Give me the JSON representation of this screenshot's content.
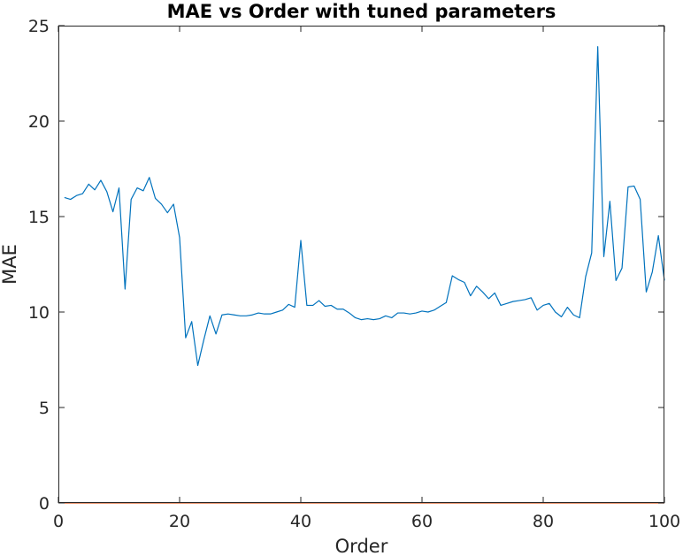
{
  "chart_data": {
    "type": "line",
    "title": "MAE vs Order with tuned parameters",
    "xlabel": "Order",
    "ylabel": "MAE",
    "xlim": [
      0,
      100
    ],
    "ylim": [
      0,
      25
    ],
    "xticks": [
      0,
      20,
      40,
      60,
      80,
      100
    ],
    "yticks": [
      0,
      5,
      10,
      15,
      20,
      25
    ],
    "grid": false,
    "box": true,
    "series": [
      {
        "color": "#0072BD",
        "x": [
          1,
          2,
          3,
          4,
          5,
          6,
          7,
          8,
          9,
          10,
          11,
          12,
          13,
          14,
          15,
          16,
          17,
          18,
          19,
          20,
          21,
          22,
          23,
          24,
          25,
          26,
          27,
          28,
          29,
          30,
          31,
          32,
          33,
          34,
          35,
          36,
          37,
          38,
          39,
          40,
          41,
          42,
          43,
          44,
          45,
          46,
          47,
          48,
          49,
          50,
          51,
          52,
          53,
          54,
          55,
          56,
          57,
          58,
          59,
          60,
          61,
          62,
          63,
          64,
          65,
          66,
          67,
          68,
          69,
          70,
          71,
          72,
          73,
          74,
          75,
          76,
          77,
          78,
          79,
          80,
          81,
          82,
          83,
          84,
          85,
          86,
          87,
          88,
          89,
          90,
          91,
          92,
          93,
          94,
          95,
          96,
          97,
          98,
          99,
          100
        ],
        "y": [
          16.0,
          15.9,
          16.1,
          16.2,
          16.7,
          16.4,
          16.9,
          16.3,
          15.25,
          16.5,
          11.2,
          15.9,
          16.5,
          16.35,
          17.05,
          15.95,
          15.65,
          15.2,
          15.65,
          13.9,
          8.65,
          9.5,
          7.2,
          8.55,
          9.8,
          8.85,
          9.85,
          9.9,
          9.85,
          9.8,
          9.8,
          9.85,
          9.95,
          9.9,
          9.9,
          10.0,
          10.1,
          10.4,
          10.25,
          13.75,
          10.35,
          10.35,
          10.6,
          10.3,
          10.35,
          10.15,
          10.15,
          9.95,
          9.7,
          9.6,
          9.65,
          9.6,
          9.65,
          9.8,
          9.7,
          9.95,
          9.95,
          9.9,
          9.95,
          10.05,
          10.0,
          10.1,
          10.3,
          10.5,
          11.9,
          11.7,
          11.55,
          10.85,
          11.35,
          11.05,
          10.7,
          11.0,
          10.35,
          10.45,
          10.55,
          10.6,
          10.65,
          10.75,
          10.1,
          10.35,
          10.45,
          10.0,
          9.75,
          10.25,
          9.85,
          9.7,
          11.85,
          13.1,
          23.9,
          12.9,
          15.8,
          11.65,
          12.3,
          16.55,
          16.6,
          15.9,
          11.05,
          12.1,
          14.0,
          11.65
        ]
      },
      {
        "color": "#D95319",
        "x": [
          1,
          100
        ],
        "y": [
          0,
          0
        ]
      }
    ]
  }
}
